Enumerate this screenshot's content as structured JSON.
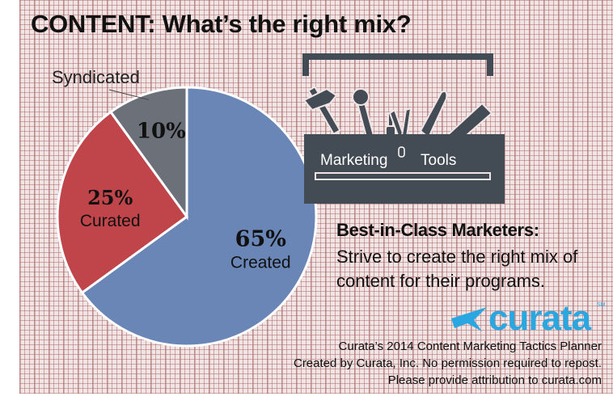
{
  "title": "CONTENT: What’s the right mix?",
  "chart_data": {
    "type": "pie",
    "slices": [
      {
        "label": "Created",
        "value": 65,
        "display": "65%",
        "color": "#6a86b7"
      },
      {
        "label": "Curated",
        "value": 25,
        "display": "25%",
        "color": "#c0454a"
      },
      {
        "label": "Syndicated",
        "value": 10,
        "display": "10%",
        "color": "#6b7079"
      }
    ],
    "edge_color": "#ffffff"
  },
  "toolbox": {
    "word_left": "Marketing",
    "word_right": "Tools",
    "color": "#434b55"
  },
  "marketers": {
    "heading": "Best-in-Class Marketers:",
    "body": "Strive to create the right mix of content for their programs."
  },
  "logo": {
    "word": "curata",
    "mark": "SM",
    "color": "#2aa7e0"
  },
  "footer": [
    "Curata’s 2014 Content Marketing Tactics Planner",
    "Created by Curata, Inc. No permission required to repost.",
    "Please provide attribution to curata.com"
  ]
}
